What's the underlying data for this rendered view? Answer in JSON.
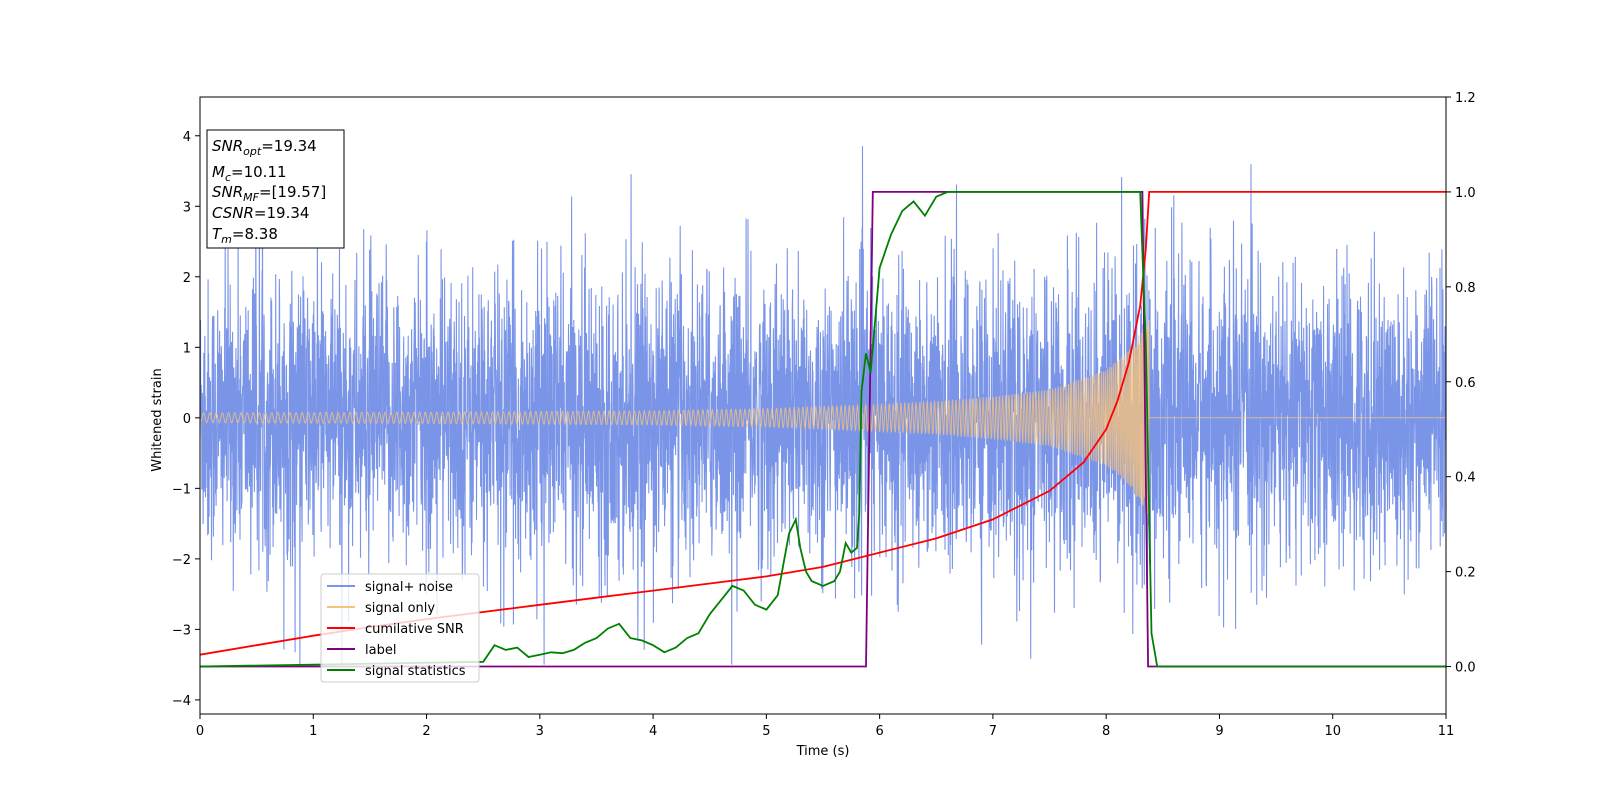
{
  "chart_data": {
    "type": "line",
    "xlabel": "Time (s)",
    "ylabel": "Whitened strain",
    "xlim": [
      0,
      11
    ],
    "ylim": [
      -4.2,
      4.55
    ],
    "y2lim": [
      -0.1,
      1.2
    ],
    "xticks": [
      0,
      1,
      2,
      3,
      4,
      5,
      6,
      7,
      8,
      9,
      10,
      11
    ],
    "yticks": [
      -4,
      -3,
      -2,
      -1,
      0,
      1,
      2,
      3,
      4
    ],
    "y2ticks": [
      0.0,
      0.2,
      0.4,
      0.6,
      0.8,
      1.0,
      1.2
    ],
    "grid": false,
    "legend_position": "lower-left",
    "annotation": {
      "lines": [
        {
          "base": "SNR",
          "sub": "opt",
          "rest": "=19.34"
        },
        {
          "base": "M",
          "sub": "c",
          "rest": "=10.11"
        },
        {
          "base": "SNR",
          "sub": "MF",
          "rest": "=[19.57]"
        },
        {
          "base": "CSNR",
          "sub": "",
          "rest": "=19.34"
        },
        {
          "base": "T",
          "sub": "m",
          "rest": "=8.38"
        }
      ]
    },
    "series": [
      {
        "name": "signal+ noise",
        "axis": "left",
        "color": "#7a95e8",
        "noise_band": {
          "t_start": 0,
          "t_end": 11,
          "typical_amplitude": 1.8,
          "peak_max": 4.18,
          "peak_min": -3.5
        }
      },
      {
        "name": "signal only",
        "axis": "left",
        "color": "#f5c27d",
        "envelope": {
          "t": [
            0,
            2,
            4,
            5,
            6,
            6.5,
            7,
            7.5,
            8,
            8.2,
            8.3,
            8.38,
            8.39,
            11
          ],
          "amplitude": [
            0.07,
            0.08,
            0.1,
            0.13,
            0.19,
            0.23,
            0.3,
            0.4,
            0.68,
            0.95,
            1.2,
            1.45,
            0,
            0
          ]
        }
      },
      {
        "name": "cumilative SNR",
        "axis": "right",
        "color": "#ff0000",
        "x": [
          0,
          0.5,
          1,
          1.5,
          2,
          2.5,
          3,
          3.5,
          4,
          4.5,
          5,
          5.5,
          6,
          6.5,
          7,
          7.5,
          7.8,
          8.0,
          8.1,
          8.2,
          8.3,
          8.35,
          8.38,
          8.4,
          9,
          10,
          11
        ],
        "y": [
          0.025,
          0.045,
          0.065,
          0.083,
          0.1,
          0.115,
          0.13,
          0.145,
          0.16,
          0.175,
          0.19,
          0.21,
          0.24,
          0.27,
          0.31,
          0.37,
          0.43,
          0.5,
          0.56,
          0.64,
          0.76,
          0.88,
          1.0,
          1.0,
          1.0,
          1.0,
          1.0
        ]
      },
      {
        "name": "label",
        "axis": "right",
        "color": "#800080",
        "x": [
          0,
          5.88,
          5.94,
          8.32,
          8.37,
          11
        ],
        "y": [
          0,
          0,
          1,
          1,
          0,
          0
        ]
      },
      {
        "name": "signal statistics",
        "axis": "right",
        "color": "#008000",
        "x": [
          0,
          2.5,
          2.6,
          2.7,
          2.8,
          2.9,
          3.0,
          3.1,
          3.2,
          3.3,
          3.4,
          3.5,
          3.6,
          3.7,
          3.8,
          3.9,
          4.0,
          4.1,
          4.2,
          4.3,
          4.4,
          4.5,
          4.6,
          4.7,
          4.8,
          4.9,
          5.0,
          5.1,
          5.2,
          5.26,
          5.3,
          5.35,
          5.4,
          5.5,
          5.6,
          5.65,
          5.7,
          5.75,
          5.8,
          5.82,
          5.84,
          5.88,
          5.92,
          5.95,
          6.0,
          6.1,
          6.2,
          6.3,
          6.4,
          6.5,
          6.6,
          6.8,
          7.0,
          7.5,
          8.0,
          8.3,
          8.35,
          8.4,
          8.45,
          8.5,
          11
        ],
        "y": [
          0,
          0.01,
          0.045,
          0.035,
          0.04,
          0.02,
          0.025,
          0.03,
          0.028,
          0.035,
          0.05,
          0.06,
          0.08,
          0.09,
          0.06,
          0.055,
          0.045,
          0.03,
          0.04,
          0.06,
          0.07,
          0.11,
          0.14,
          0.17,
          0.16,
          0.13,
          0.12,
          0.15,
          0.28,
          0.31,
          0.25,
          0.2,
          0.18,
          0.17,
          0.18,
          0.2,
          0.26,
          0.24,
          0.25,
          0.32,
          0.58,
          0.66,
          0.62,
          0.7,
          0.84,
          0.91,
          0.96,
          0.98,
          0.95,
          0.99,
          1.0,
          1.0,
          1.0,
          1.0,
          1.0,
          1.0,
          0.68,
          0.07,
          0,
          0,
          0
        ]
      }
    ]
  }
}
